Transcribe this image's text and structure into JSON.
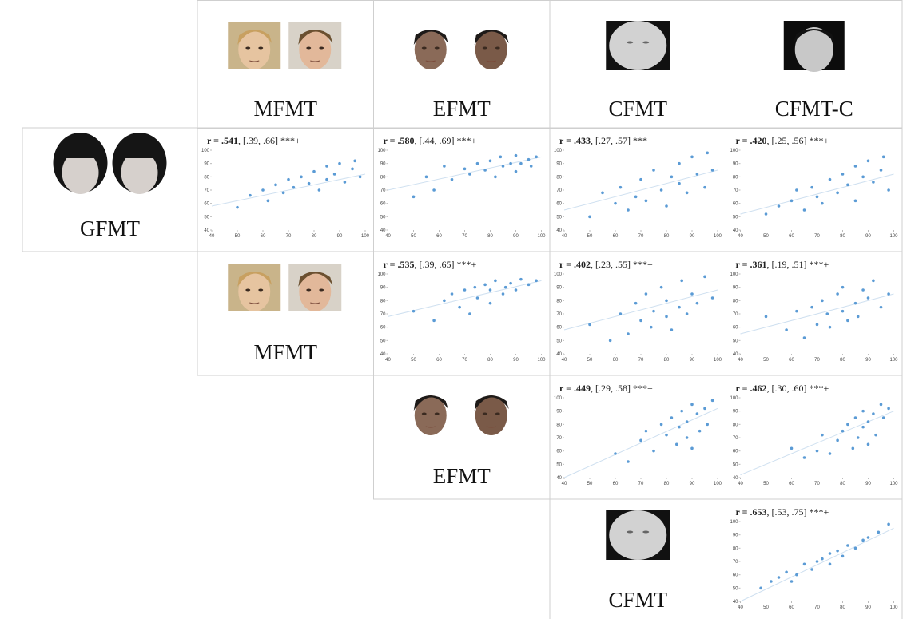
{
  "column_headers": [
    "MFMT",
    "EFMT",
    "CFMT",
    "CFMT-C"
  ],
  "row_headers": [
    "GFMT",
    "MFMT",
    "EFMT",
    "CFMT"
  ],
  "chart_data": [
    {
      "type": "scatter",
      "annotation_bold": "r = .541",
      "annotation_rest": ", [.39, .66] ***+",
      "color": "#5b9bd5",
      "x": [
        50,
        55,
        60,
        62,
        65,
        68,
        70,
        72,
        75,
        78,
        80,
        82,
        85,
        85,
        88,
        90,
        92,
        95,
        96,
        98
      ],
      "y": [
        57,
        66,
        70,
        62,
        74,
        68,
        78,
        72,
        80,
        75,
        84,
        70,
        88,
        78,
        82,
        90,
        76,
        86,
        92,
        80
      ],
      "trendline_y": [
        58,
        82
      ],
      "xlim": [
        40,
        100
      ],
      "ylim": [
        40,
        100
      ],
      "xticks": [
        40,
        50,
        60,
        70,
        80,
        90,
        100
      ],
      "yticks": [
        40,
        50,
        60,
        70,
        80,
        90,
        100
      ]
    },
    {
      "type": "scatter",
      "annotation_bold": "r = .580",
      "annotation_rest": ", [.44, .69] ***+",
      "color": "#5b9bd5",
      "x": [
        50,
        55,
        58,
        62,
        65,
        70,
        72,
        75,
        78,
        80,
        82,
        84,
        85,
        88,
        90,
        90,
        92,
        95,
        96,
        98
      ],
      "y": [
        65,
        80,
        70,
        88,
        78,
        86,
        82,
        90,
        85,
        92,
        80,
        95,
        88,
        90,
        84,
        96,
        90,
        93,
        88,
        95
      ],
      "trendline_y": [
        70,
        95
      ],
      "xlim": [
        40,
        100
      ],
      "ylim": [
        40,
        100
      ],
      "xticks": [
        40,
        50,
        60,
        70,
        80,
        90,
        100
      ],
      "yticks": [
        40,
        50,
        60,
        70,
        80,
        90,
        100
      ]
    },
    {
      "type": "scatter",
      "annotation_bold": "r = .433",
      "annotation_rest": ", [.27, .57] ***+",
      "color": "#5b9bd5",
      "x": [
        50,
        55,
        60,
        62,
        65,
        68,
        70,
        72,
        75,
        78,
        80,
        82,
        85,
        85,
        88,
        90,
        92,
        95,
        96,
        98
      ],
      "y": [
        50,
        68,
        60,
        72,
        55,
        65,
        78,
        62,
        85,
        70,
        58,
        80,
        90,
        75,
        68,
        95,
        82,
        72,
        98,
        85
      ],
      "trendline_y": [
        55,
        85
      ],
      "xlim": [
        40,
        100
      ],
      "ylim": [
        40,
        100
      ],
      "xticks": [
        40,
        50,
        60,
        70,
        80,
        90,
        100
      ],
      "yticks": [
        40,
        50,
        60,
        70,
        80,
        90,
        100
      ]
    },
    {
      "type": "scatter",
      "annotation_bold": "r = .420",
      "annotation_rest": ", [.25, .56] ***+",
      "color": "#5b9bd5",
      "x": [
        50,
        55,
        60,
        62,
        65,
        68,
        70,
        72,
        75,
        78,
        80,
        82,
        85,
        85,
        88,
        90,
        92,
        95,
        96,
        98
      ],
      "y": [
        52,
        58,
        62,
        70,
        55,
        72,
        65,
        60,
        78,
        68,
        82,
        74,
        88,
        62,
        80,
        92,
        76,
        85,
        95,
        70
      ],
      "trendline_y": [
        52,
        82
      ],
      "xlim": [
        40,
        100
      ],
      "ylim": [
        40,
        100
      ],
      "xticks": [
        40,
        50,
        60,
        70,
        80,
        90,
        100
      ],
      "yticks": [
        40,
        50,
        60,
        70,
        80,
        90,
        100
      ]
    },
    {
      "type": "scatter",
      "annotation_bold": "r = .535",
      "annotation_rest": ", [.39, .65] ***+",
      "color": "#5b9bd5",
      "x": [
        50,
        58,
        62,
        65,
        68,
        70,
        72,
        74,
        75,
        78,
        80,
        80,
        82,
        85,
        86,
        88,
        90,
        92,
        95,
        98
      ],
      "y": [
        72,
        65,
        80,
        85,
        75,
        88,
        70,
        90,
        82,
        92,
        78,
        88,
        95,
        85,
        90,
        93,
        88,
        96,
        92,
        95
      ],
      "trendline_y": [
        68,
        95
      ],
      "xlim": [
        40,
        100
      ],
      "ylim": [
        40,
        100
      ],
      "xticks": [
        40,
        50,
        60,
        70,
        80,
        90,
        100
      ],
      "yticks": [
        40,
        50,
        60,
        70,
        80,
        90,
        100
      ]
    },
    {
      "type": "scatter",
      "annotation_bold": "r = .402",
      "annotation_rest": ", [.23, .55] ***+",
      "color": "#5b9bd5",
      "x": [
        50,
        58,
        62,
        65,
        68,
        70,
        72,
        74,
        75,
        78,
        80,
        80,
        82,
        85,
        86,
        88,
        90,
        92,
        95,
        98
      ],
      "y": [
        62,
        50,
        70,
        55,
        78,
        65,
        85,
        60,
        72,
        90,
        68,
        80,
        58,
        75,
        95,
        70,
        85,
        78,
        98,
        82
      ],
      "trendline_y": [
        58,
        88
      ],
      "xlim": [
        40,
        100
      ],
      "ylim": [
        40,
        100
      ],
      "xticks": [
        40,
        50,
        60,
        70,
        80,
        90,
        100
      ],
      "yticks": [
        40,
        50,
        60,
        70,
        80,
        90,
        100
      ]
    },
    {
      "type": "scatter",
      "annotation_bold": "r = .361",
      "annotation_rest": ", [.19, .51] ***+",
      "color": "#5b9bd5",
      "x": [
        50,
        58,
        62,
        65,
        68,
        70,
        72,
        74,
        75,
        78,
        80,
        80,
        82,
        85,
        86,
        88,
        90,
        92,
        95,
        98
      ],
      "y": [
        68,
        58,
        72,
        52,
        75,
        62,
        80,
        70,
        60,
        85,
        72,
        90,
        65,
        78,
        68,
        88,
        82,
        95,
        75,
        85
      ],
      "trendline_y": [
        55,
        85
      ],
      "xlim": [
        40,
        100
      ],
      "ylim": [
        40,
        100
      ],
      "xticks": [
        40,
        50,
        60,
        70,
        80,
        90,
        100
      ],
      "yticks": [
        40,
        50,
        60,
        70,
        80,
        90,
        100
      ]
    },
    {
      "type": "scatter",
      "annotation_bold": "r = .449",
      "annotation_rest": ", [.29, .58] ***+",
      "color": "#5b9bd5",
      "x": [
        60,
        65,
        70,
        72,
        75,
        78,
        80,
        82,
        84,
        85,
        86,
        88,
        88,
        90,
        90,
        92,
        93,
        95,
        96,
        98
      ],
      "y": [
        58,
        52,
        68,
        75,
        60,
        80,
        72,
        85,
        65,
        78,
        90,
        70,
        82,
        95,
        62,
        88,
        75,
        92,
        80,
        98
      ],
      "trendline_y": [
        40,
        92
      ],
      "xlim": [
        40,
        100
      ],
      "ylim": [
        40,
        100
      ],
      "xticks": [
        40,
        50,
        60,
        70,
        80,
        90,
        100
      ],
      "yticks": [
        40,
        50,
        60,
        70,
        80,
        90,
        100
      ]
    },
    {
      "type": "scatter",
      "annotation_bold": "r = .462",
      "annotation_rest": ", [.30, .60] ***+",
      "color": "#5b9bd5",
      "x": [
        60,
        65,
        70,
        72,
        75,
        78,
        80,
        82,
        84,
        85,
        86,
        88,
        88,
        90,
        90,
        92,
        93,
        95,
        96,
        98
      ],
      "y": [
        62,
        55,
        60,
        72,
        58,
        68,
        75,
        80,
        62,
        85,
        70,
        78,
        90,
        65,
        82,
        88,
        72,
        95,
        85,
        92
      ],
      "trendline_y": [
        42,
        90
      ],
      "xlim": [
        40,
        100
      ],
      "ylim": [
        40,
        100
      ],
      "xticks": [
        40,
        50,
        60,
        70,
        80,
        90,
        100
      ],
      "yticks": [
        40,
        50,
        60,
        70,
        80,
        90,
        100
      ]
    },
    {
      "type": "scatter",
      "annotation_bold": "r = .653",
      "annotation_rest": ", [.53, .75] ***+",
      "color": "#5b9bd5",
      "x": [
        48,
        52,
        55,
        58,
        60,
        62,
        65,
        68,
        70,
        72,
        75,
        75,
        78,
        80,
        82,
        85,
        88,
        90,
        94,
        98
      ],
      "y": [
        50,
        55,
        58,
        62,
        55,
        60,
        68,
        64,
        70,
        72,
        68,
        76,
        78,
        74,
        82,
        80,
        86,
        88,
        92,
        98
      ],
      "trendline_y": [
        40,
        95
      ],
      "xlim": [
        40,
        100
      ],
      "ylim": [
        40,
        100
      ],
      "xticks": [
        40,
        50,
        60,
        70,
        80,
        90,
        100
      ],
      "yticks": [
        40,
        50,
        60,
        70,
        80,
        90,
        100
      ]
    }
  ]
}
